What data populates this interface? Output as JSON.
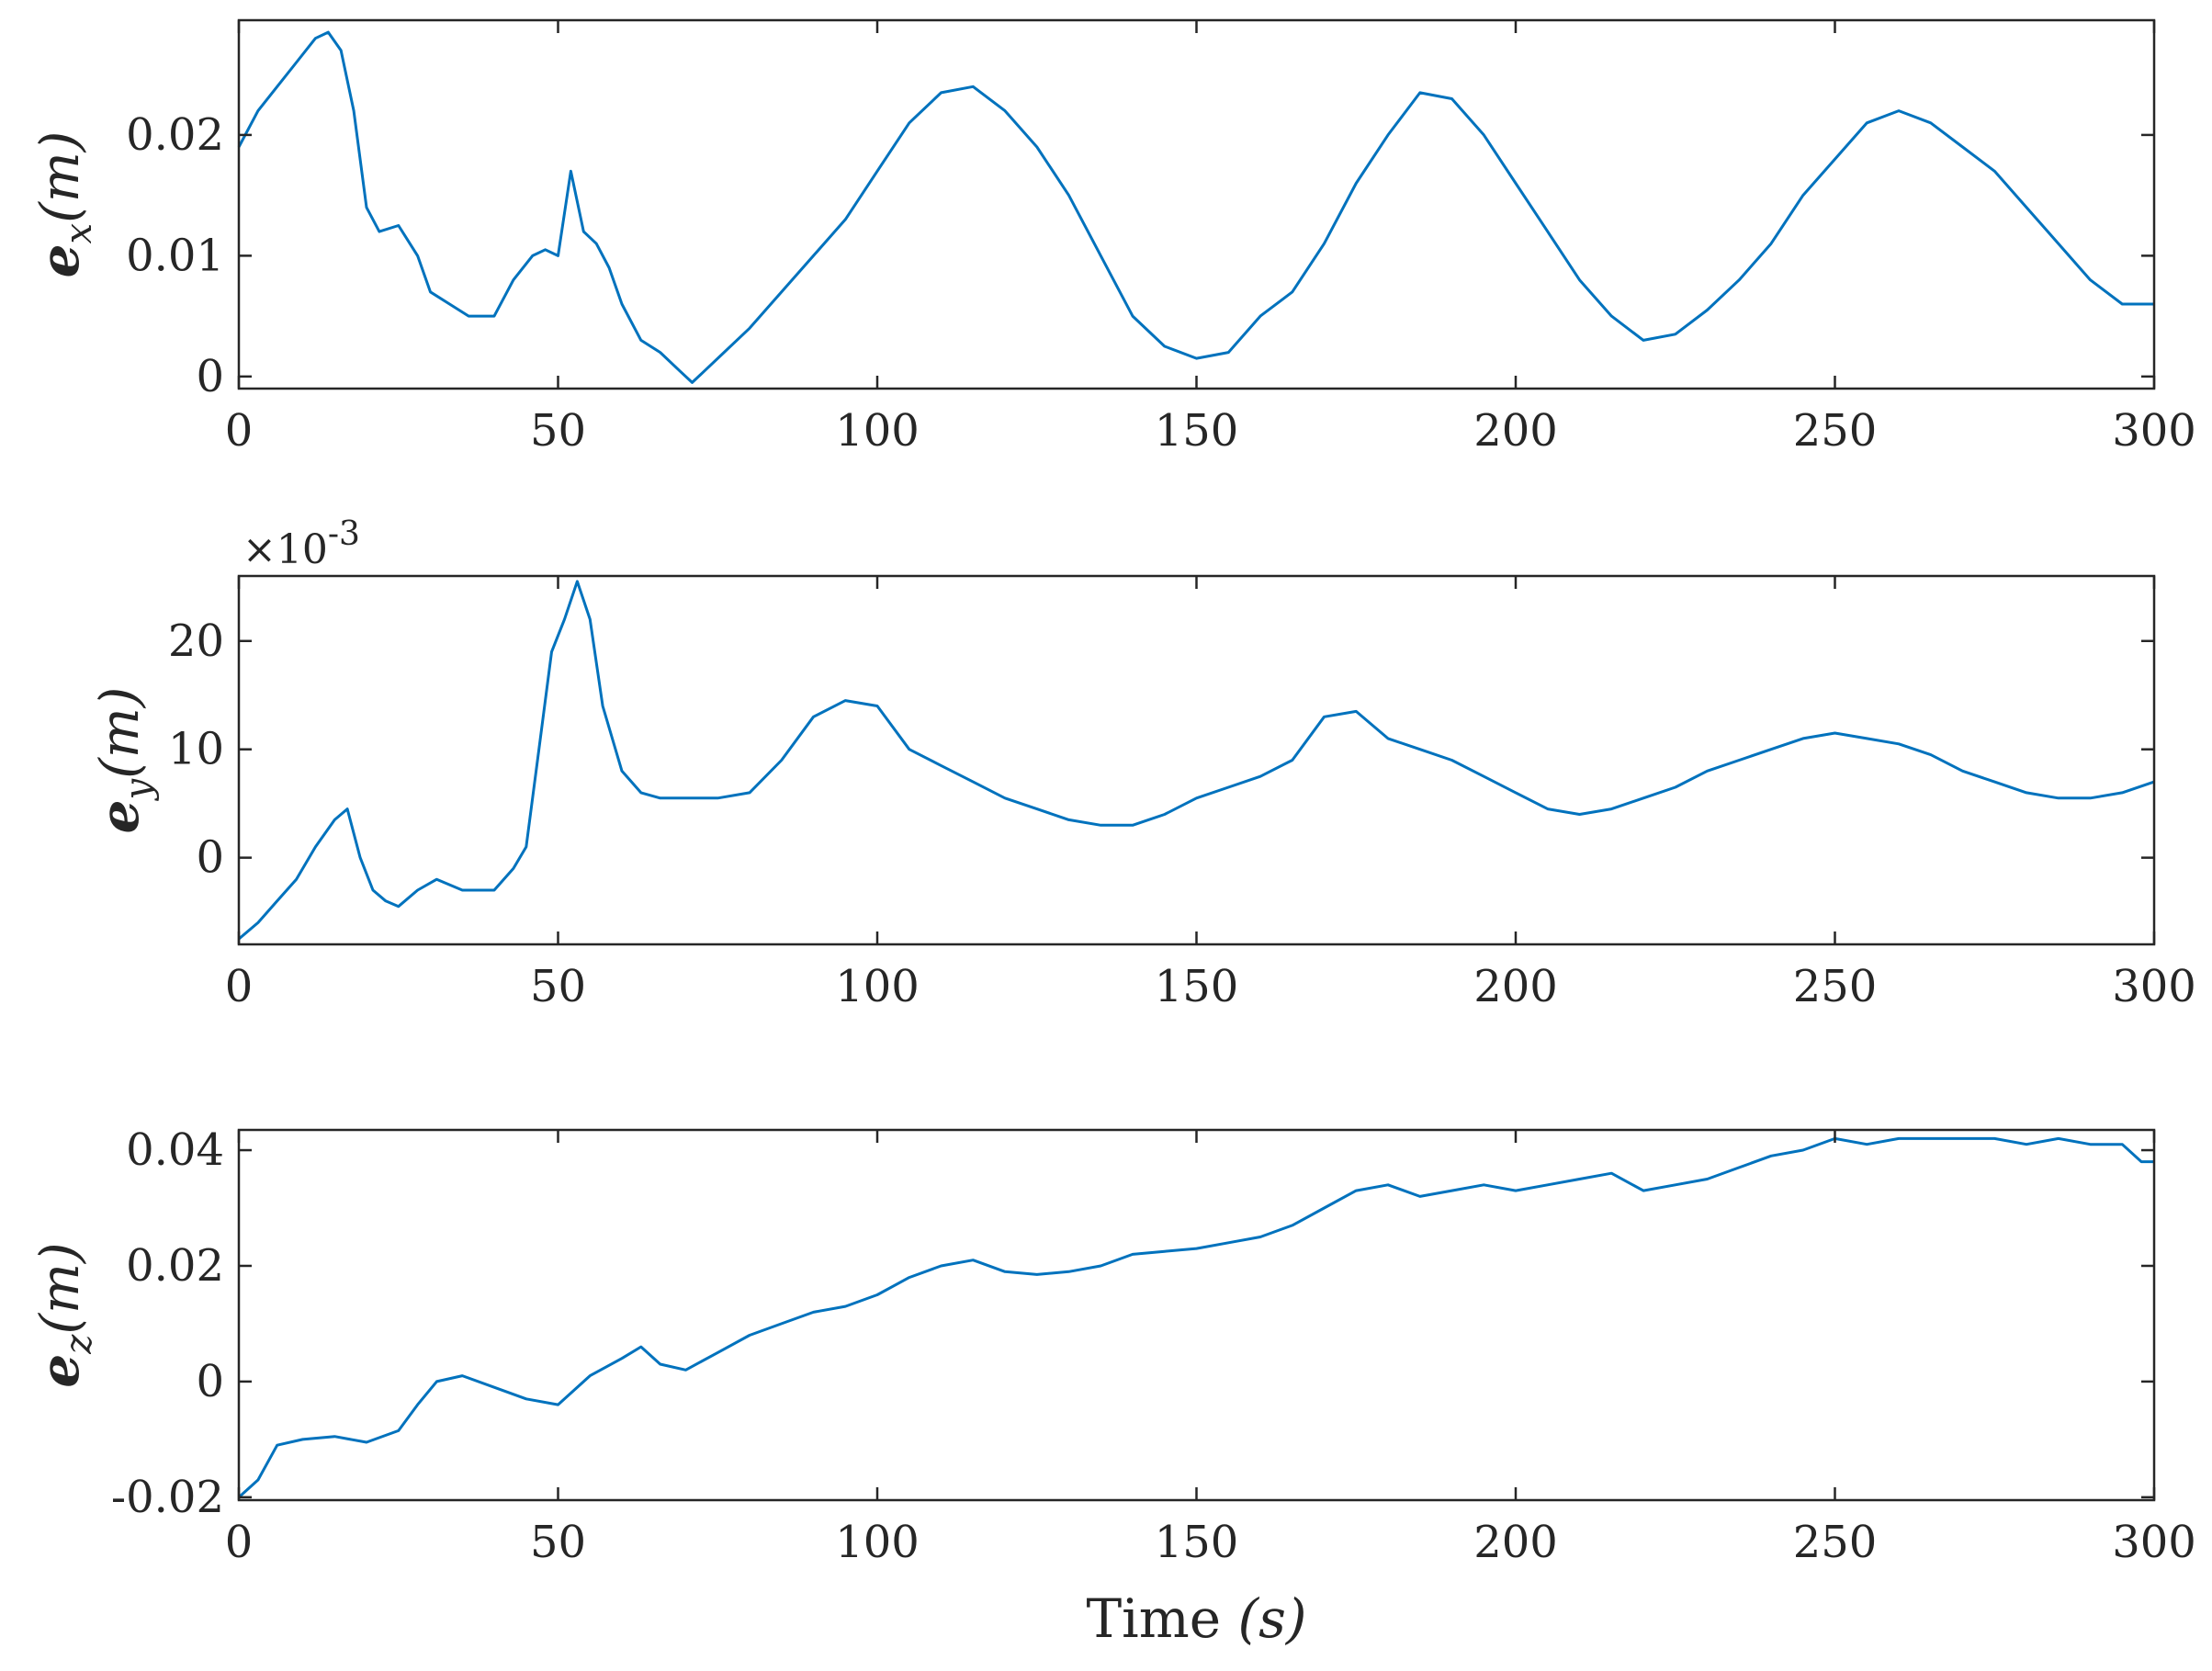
{
  "figure": {
    "background": "#ffffff",
    "line_color": "#0072BD",
    "axis_color": "#262626"
  },
  "chart_data": [
    {
      "type": "line",
      "name": "ex",
      "ylabel_main": "e",
      "ylabel_sub": "x",
      "ylabel_unit": "(m)",
      "xlim": [
        0,
        300
      ],
      "ylim": [
        -0.001,
        0.0295
      ],
      "xticks": [
        0,
        50,
        100,
        150,
        200,
        250,
        300
      ],
      "xtick_labels": [
        "0",
        "50",
        "100",
        "150",
        "200",
        "250",
        "300"
      ],
      "yticks": [
        0,
        0.01,
        0.02
      ],
      "ytick_labels": [
        "0",
        "0.01",
        "0.02"
      ],
      "exponent_label": "",
      "xlabel": "",
      "series": [
        {
          "name": "e_x",
          "x": [
            0,
            3,
            6,
            9,
            12,
            14,
            16,
            18,
            20,
            22,
            25,
            28,
            30,
            33,
            36,
            40,
            43,
            46,
            48,
            50,
            52,
            54,
            56,
            58,
            60,
            63,
            66,
            69,
            71,
            73,
            76,
            80,
            85,
            90,
            95,
            100,
            105,
            110,
            115,
            120,
            125,
            130,
            135,
            140,
            145,
            150,
            155,
            160,
            165,
            170,
            175,
            180,
            185,
            190,
            195,
            200,
            205,
            210,
            215,
            220,
            225,
            230,
            235,
            240,
            245,
            250,
            255,
            260,
            265,
            270,
            275,
            280,
            285,
            290,
            295,
            300
          ],
          "values": [
            0.019,
            0.022,
            0.024,
            0.026,
            0.028,
            0.0285,
            0.027,
            0.022,
            0.014,
            0.012,
            0.0125,
            0.01,
            0.007,
            0.006,
            0.005,
            0.005,
            0.008,
            0.01,
            0.0105,
            0.01,
            0.017,
            0.012,
            0.011,
            0.009,
            0.006,
            0.003,
            0.002,
            0.0005,
            -0.0005,
            0.0005,
            0.002,
            0.004,
            0.007,
            0.01,
            0.013,
            0.017,
            0.021,
            0.0235,
            0.024,
            0.022,
            0.019,
            0.015,
            0.01,
            0.005,
            0.0025,
            0.0015,
            0.002,
            0.005,
            0.007,
            0.011,
            0.016,
            0.02,
            0.0235,
            0.023,
            0.02,
            0.016,
            0.012,
            0.008,
            0.005,
            0.003,
            0.0035,
            0.0055,
            0.008,
            0.011,
            0.015,
            0.018,
            0.021,
            0.022,
            0.021,
            0.019,
            0.017,
            0.014,
            0.011,
            0.008,
            0.006,
            0.006
          ]
        }
      ]
    },
    {
      "type": "line",
      "name": "ey",
      "ylabel_main": "e",
      "ylabel_sub": "y",
      "ylabel_unit": "(m)",
      "xlim": [
        0,
        300
      ],
      "ylim": [
        -8,
        26
      ],
      "xticks": [
        0,
        50,
        100,
        150,
        200,
        250,
        300
      ],
      "xtick_labels": [
        "0",
        "50",
        "100",
        "150",
        "200",
        "250",
        "300"
      ],
      "yticks": [
        0,
        10,
        20
      ],
      "ytick_labels": [
        "0",
        "10",
        "20"
      ],
      "exponent_label": "×10",
      "exponent_power": "-3",
      "xlabel": "",
      "series": [
        {
          "name": "e_y",
          "x": [
            0,
            3,
            6,
            9,
            12,
            15,
            17,
            19,
            21,
            23,
            25,
            28,
            31,
            35,
            40,
            43,
            45,
            47,
            49,
            51,
            53,
            55,
            57,
            60,
            63,
            66,
            70,
            75,
            80,
            85,
            90,
            95,
            100,
            105,
            110,
            115,
            120,
            125,
            130,
            135,
            140,
            145,
            150,
            155,
            160,
            165,
            170,
            175,
            180,
            185,
            190,
            195,
            200,
            205,
            210,
            215,
            220,
            225,
            230,
            235,
            240,
            245,
            250,
            255,
            260,
            265,
            270,
            275,
            280,
            285,
            290,
            295,
            300
          ],
          "values": [
            -7.5,
            -6,
            -4,
            -2,
            1,
            3.5,
            4.5,
            0,
            -3,
            -4,
            -4.5,
            -3,
            -2,
            -3,
            -3,
            -1,
            1,
            10,
            19,
            22,
            25.5,
            22,
            14,
            8,
            6,
            5.5,
            5.5,
            5.5,
            6,
            9,
            13,
            14.5,
            14,
            10,
            8.5,
            7,
            5.5,
            4.5,
            3.5,
            3,
            3,
            4,
            5.5,
            6.5,
            7.5,
            9,
            13,
            13.5,
            11,
            10,
            9,
            7.5,
            6,
            4.5,
            4,
            4.5,
            5.5,
            6.5,
            8,
            9,
            10,
            11,
            11.5,
            11,
            10.5,
            9.5,
            8,
            7,
            6,
            5.5,
            5.5,
            6,
            7
          ]
        }
      ]
    },
    {
      "type": "line",
      "name": "ez",
      "ylabel_main": "e",
      "ylabel_sub": "z",
      "ylabel_unit": "(m)",
      "xlim": [
        0,
        300
      ],
      "ylim": [
        -0.0205,
        0.0435
      ],
      "xticks": [
        0,
        50,
        100,
        150,
        200,
        250,
        300
      ],
      "xtick_labels": [
        "0",
        "50",
        "100",
        "150",
        "200",
        "250",
        "300"
      ],
      "yticks": [
        -0.02,
        0,
        0.02,
        0.04
      ],
      "ytick_labels": [
        "-0.02",
        "0",
        "0.02",
        "0.04"
      ],
      "exponent_label": "",
      "xlabel": "Time",
      "xlabel_unit": "(s)",
      "series": [
        {
          "name": "e_z",
          "x": [
            0,
            3,
            6,
            10,
            15,
            20,
            25,
            28,
            31,
            35,
            40,
            45,
            50,
            55,
            60,
            63,
            66,
            70,
            75,
            80,
            85,
            90,
            95,
            100,
            105,
            110,
            115,
            120,
            125,
            130,
            135,
            140,
            145,
            150,
            155,
            160,
            165,
            170,
            175,
            180,
            185,
            190,
            195,
            200,
            205,
            210,
            215,
            220,
            225,
            230,
            235,
            240,
            245,
            250,
            255,
            260,
            265,
            270,
            275,
            280,
            285,
            290,
            295,
            298,
            300
          ],
          "values": [
            -0.02,
            -0.017,
            -0.011,
            -0.01,
            -0.0095,
            -0.0105,
            -0.0085,
            -0.004,
            0,
            0.001,
            -0.001,
            -0.003,
            -0.004,
            0.001,
            0.004,
            0.006,
            0.003,
            0.002,
            0.005,
            0.008,
            0.01,
            0.012,
            0.013,
            0.015,
            0.018,
            0.02,
            0.021,
            0.019,
            0.0185,
            0.019,
            0.02,
            0.022,
            0.0225,
            0.023,
            0.024,
            0.025,
            0.027,
            0.03,
            0.033,
            0.034,
            0.032,
            0.033,
            0.034,
            0.033,
            0.034,
            0.035,
            0.036,
            0.033,
            0.034,
            0.035,
            0.037,
            0.039,
            0.04,
            0.042,
            0.041,
            0.042,
            0.042,
            0.042,
            0.042,
            0.041,
            0.042,
            0.041,
            0.041,
            0.038,
            0.038
          ]
        }
      ]
    }
  ]
}
